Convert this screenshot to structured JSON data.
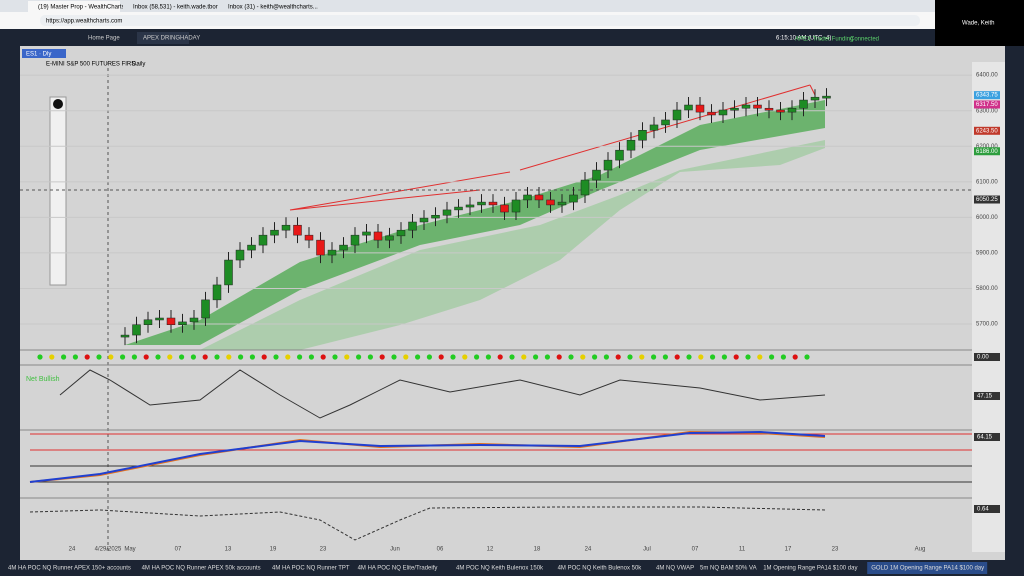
{
  "browser": {
    "tabs": [
      "(19) Master Prop - WealthCharts",
      "Inbox (58,531) - keith.wade.tbor@...",
      "Inbox (31) - keith@wealthcharts..."
    ],
    "url": "https://app.wealthcharts.com",
    "user": "Wade, Keith"
  },
  "toolbar": {
    "tabs": [
      "Home Page",
      "APEX DRINGHADAY"
    ],
    "time": "6:15:10 AM",
    "timezone": "(UTC -4)",
    "account": "APEX Trader Funding",
    "status": "Connected"
  },
  "chart": {
    "symbol": "ES1 · Dly",
    "title": "E-MINI S&P 500 FUTURES FIRS...",
    "interval": "Daily",
    "sentiment": "Net Bullish",
    "ylim": [
      5627,
      6437
    ],
    "yticks": [
      {
        "value": 6400,
        "label": "6400.00"
      },
      {
        "value": 6300,
        "label": "6300.00"
      },
      {
        "value": 6200,
        "label": "6200.00"
      },
      {
        "value": 6100,
        "label": "6100.00"
      },
      {
        "value": 6000,
        "label": "6000.00"
      },
      {
        "value": 5900,
        "label": "5900.00"
      },
      {
        "value": 5800,
        "label": "5800.00"
      },
      {
        "value": 5700,
        "label": "5700.00"
      }
    ],
    "closes": [
      5669,
      5698,
      5712,
      5717,
      5698,
      5706,
      5717,
      5768,
      5810,
      5880,
      5908,
      5922,
      5950,
      5964,
      5978,
      5950,
      5936,
      5894,
      5908,
      5922,
      5950,
      5959,
      5936,
      5948,
      5964,
      5987,
      5998,
      6006,
      6021,
      6029,
      6035,
      6043,
      6035,
      6015,
      6049,
      6063,
      6049,
      6035,
      6043,
      6063,
      6105,
      6133,
      6161,
      6189,
      6217,
      6245,
      6260,
      6274,
      6302,
      6316,
      6296,
      6288,
      6302,
      6307,
      6316,
      6307,
      6302,
      6296,
      6307,
      6330,
      6338,
      6341
    ],
    "price_flags": [
      {
        "value": 6343.75,
        "label": "6343.75",
        "color": "#3aa0e0"
      },
      {
        "value": 6317.5,
        "label": "6317.50",
        "color": "#d0308a"
      },
      {
        "value": 6243.5,
        "label": "6243.50",
        "color": "#c0392b"
      },
      {
        "value": 6186,
        "label": "6186.00",
        "color": "#2e9e3e"
      },
      {
        "value": 6050.25,
        "label": "6050.25",
        "color": "#333333"
      }
    ],
    "x_labels": [
      "24",
      "4/29/2025",
      "May",
      "07",
      "13",
      "19",
      "23",
      "Jun",
      "06",
      "12",
      "18",
      "24",
      "Jul",
      "07",
      "11",
      "17",
      "23",
      "Aug"
    ],
    "indicator_values": [
      "0.00",
      "47.15",
      "64.15",
      "0.64"
    ]
  },
  "bottom_tabs": [
    "4M HA POC NQ Runner APEX 150+ accounts",
    "4M HA POC NQ Runner APEX 50k accounts",
    "4M HA POC NQ Runner TPT",
    "4M HA POC NQ Elite/Tradeify",
    "4M POC NQ Keith Bulenox 150k",
    "4M POC NQ Keith Bulenox 50k",
    "4M NQ VWAP",
    "5m NQ BAM 50% VA",
    "1M Opening Range PA14 $100 day",
    "GOLD 1M Opening Range PA14 $100 day"
  ]
}
